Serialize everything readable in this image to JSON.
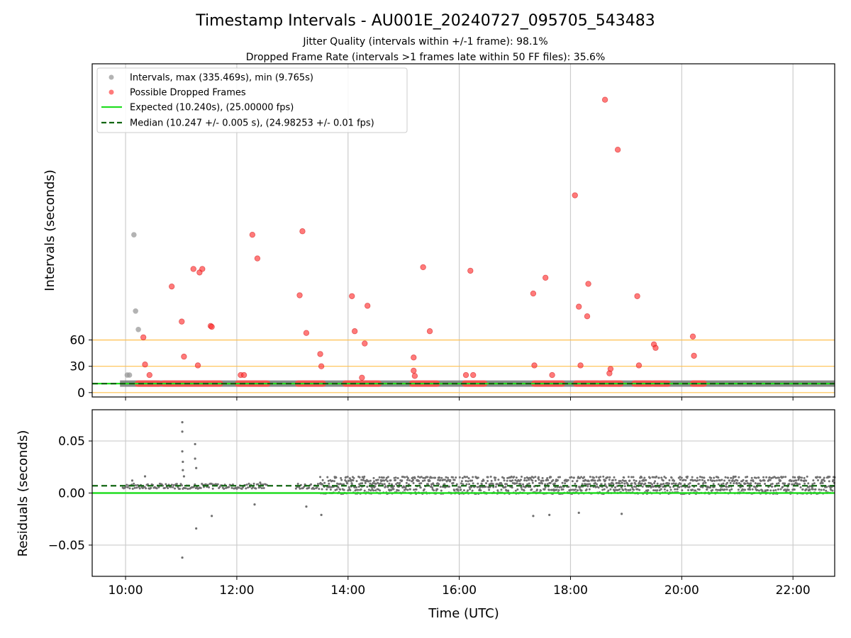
{
  "chart_data": [
    {
      "type": "scatter",
      "title": "Timestamp Intervals - AU001E_20240727_095705_543483",
      "subtitle_lines": [
        "Jitter Quality (intervals within +/-1 frame): 98.1%",
        "Dropped Frame Rate (intervals >1 frames late within 50 FF files): 35.6%"
      ],
      "xlabel": "",
      "ylabel": "Intervals (seconds)",
      "xlim_hours": [
        9.4,
        22.75
      ],
      "ylim": [
        -5,
        375
      ],
      "yticks": [
        0,
        30,
        60
      ],
      "y_tick_labels": [
        "0",
        "30",
        "60"
      ],
      "reference_lines": [
        0,
        30,
        60
      ],
      "reference_color": "#ffc04d",
      "legend_position": "upper-left",
      "legend": [
        {
          "label": "Intervals, max (335.469s), min (9.765s)",
          "marker": "circle",
          "color": "#999999"
        },
        {
          "label": "Possible Dropped Frames",
          "marker": "circle",
          "color": "#ff4d4d"
        },
        {
          "label": "Expected (10.240s), (25.00000 fps)",
          "marker": "line",
          "color": "#22dd22"
        },
        {
          "label": "Median (10.247 +/- 0.005 s), (24.98253 +/- 0.01 fps)",
          "marker": "dashed-line",
          "color": "#116611"
        }
      ],
      "expected_value": 10.24,
      "median_value": 10.247,
      "normal_band": {
        "from_hour": 9.4,
        "to_hour": 22.75,
        "value": 10.24
      },
      "normal_points": [
        {
          "x": 10.03,
          "y": 20
        },
        {
          "x": 10.07,
          "y": 20
        },
        {
          "x": 10.15,
          "y": 180
        },
        {
          "x": 10.18,
          "y": 93
        },
        {
          "x": 10.23,
          "y": 72
        }
      ],
      "dropped_segments": [
        [
          10.22,
          10.6
        ],
        [
          10.68,
          11.7
        ],
        [
          12.02,
          12.55
        ],
        [
          13.1,
          13.55
        ],
        [
          13.95,
          14.55
        ],
        [
          15.15,
          15.6
        ],
        [
          16.1,
          16.45
        ],
        [
          17.35,
          17.85
        ],
        [
          18.1,
          18.5
        ],
        [
          18.55,
          18.9
        ],
        [
          19.15,
          19.45
        ],
        [
          19.5,
          19.75
        ],
        [
          20.2,
          20.4
        ]
      ],
      "dropped_points": [
        {
          "x": 10.32,
          "y": 63
        },
        {
          "x": 10.35,
          "y": 32
        },
        {
          "x": 10.43,
          "y": 20
        },
        {
          "x": 10.83,
          "y": 121
        },
        {
          "x": 11.01,
          "y": 81
        },
        {
          "x": 11.05,
          "y": 41
        },
        {
          "x": 11.22,
          "y": 141
        },
        {
          "x": 11.3,
          "y": 31
        },
        {
          "x": 11.33,
          "y": 137
        },
        {
          "x": 11.38,
          "y": 141
        },
        {
          "x": 11.53,
          "y": 76
        },
        {
          "x": 11.55,
          "y": 75
        },
        {
          "x": 12.07,
          "y": 20
        },
        {
          "x": 12.13,
          "y": 20
        },
        {
          "x": 12.28,
          "y": 180
        },
        {
          "x": 12.37,
          "y": 153
        },
        {
          "x": 13.13,
          "y": 111
        },
        {
          "x": 13.18,
          "y": 184
        },
        {
          "x": 13.25,
          "y": 68
        },
        {
          "x": 13.5,
          "y": 44
        },
        {
          "x": 13.52,
          "y": 30
        },
        {
          "x": 14.07,
          "y": 110
        },
        {
          "x": 14.12,
          "y": 70
        },
        {
          "x": 14.25,
          "y": 17
        },
        {
          "x": 14.3,
          "y": 56
        },
        {
          "x": 14.35,
          "y": 99
        },
        {
          "x": 15.18,
          "y": 40
        },
        {
          "x": 15.18,
          "y": 25
        },
        {
          "x": 15.2,
          "y": 19
        },
        {
          "x": 15.35,
          "y": 143
        },
        {
          "x": 15.47,
          "y": 70
        },
        {
          "x": 16.12,
          "y": 20
        },
        {
          "x": 16.2,
          "y": 139
        },
        {
          "x": 16.25,
          "y": 20
        },
        {
          "x": 17.33,
          "y": 113
        },
        {
          "x": 17.35,
          "y": 31
        },
        {
          "x": 17.55,
          "y": 131
        },
        {
          "x": 17.67,
          "y": 20
        },
        {
          "x": 18.08,
          "y": 225
        },
        {
          "x": 18.15,
          "y": 98
        },
        {
          "x": 18.18,
          "y": 31
        },
        {
          "x": 18.3,
          "y": 87
        },
        {
          "x": 18.32,
          "y": 124
        },
        {
          "x": 18.62,
          "y": 334
        },
        {
          "x": 18.7,
          "y": 22
        },
        {
          "x": 18.72,
          "y": 27
        },
        {
          "x": 18.85,
          "y": 277
        },
        {
          "x": 19.2,
          "y": 110
        },
        {
          "x": 19.23,
          "y": 31
        },
        {
          "x": 19.5,
          "y": 55
        },
        {
          "x": 19.53,
          "y": 51
        },
        {
          "x": 20.2,
          "y": 64
        },
        {
          "x": 20.22,
          "y": 42
        }
      ]
    },
    {
      "type": "scatter",
      "xlabel": "Time (UTC)",
      "ylabel": "Residuals (seconds)",
      "xlim_hours": [
        9.4,
        22.75
      ],
      "ylim": [
        -0.08,
        0.08
      ],
      "yticks": [
        -0.05,
        0,
        0.05
      ],
      "y_tick_labels": [
        "−0.05",
        "0.00",
        "0.05"
      ],
      "xticks_hours": [
        10,
        12,
        14,
        16,
        18,
        20,
        22
      ],
      "x_tick_labels": [
        "10:00",
        "12:00",
        "14:00",
        "16:00",
        "18:00",
        "20:00",
        "22:00"
      ],
      "expected_residual": 0.0,
      "median_residual": 0.007,
      "point_color": "#707070",
      "early_band": {
        "from_hour": 9.95,
        "to_hour": 13.5,
        "values": [
          0.005,
          0.008
        ]
      },
      "late_band": {
        "from_hour": 13.5,
        "to_hour": 22.75,
        "values": [
          0.0,
          0.003,
          0.006,
          0.009,
          0.012,
          0.015
        ]
      },
      "outliers": [
        {
          "x": 11.02,
          "y": 0.068
        },
        {
          "x": 11.02,
          "y": 0.059
        },
        {
          "x": 11.02,
          "y": 0.04
        },
        {
          "x": 11.03,
          "y": 0.03
        },
        {
          "x": 11.03,
          "y": 0.022
        },
        {
          "x": 11.05,
          "y": 0.016
        },
        {
          "x": 11.02,
          "y": -0.062
        },
        {
          "x": 11.25,
          "y": 0.047
        },
        {
          "x": 11.25,
          "y": 0.033
        },
        {
          "x": 11.27,
          "y": 0.024
        },
        {
          "x": 11.27,
          "y": -0.034
        },
        {
          "x": 11.55,
          "y": -0.022
        },
        {
          "x": 12.32,
          "y": -0.011
        },
        {
          "x": 12.42,
          "y": 0.01
        },
        {
          "x": 13.25,
          "y": -0.013
        },
        {
          "x": 13.52,
          "y": -0.021
        },
        {
          "x": 17.33,
          "y": -0.022
        },
        {
          "x": 17.62,
          "y": -0.021
        },
        {
          "x": 18.15,
          "y": -0.019
        },
        {
          "x": 18.92,
          "y": -0.02
        },
        {
          "x": 10.35,
          "y": 0.016
        },
        {
          "x": 10.12,
          "y": 0.012
        }
      ]
    }
  ]
}
